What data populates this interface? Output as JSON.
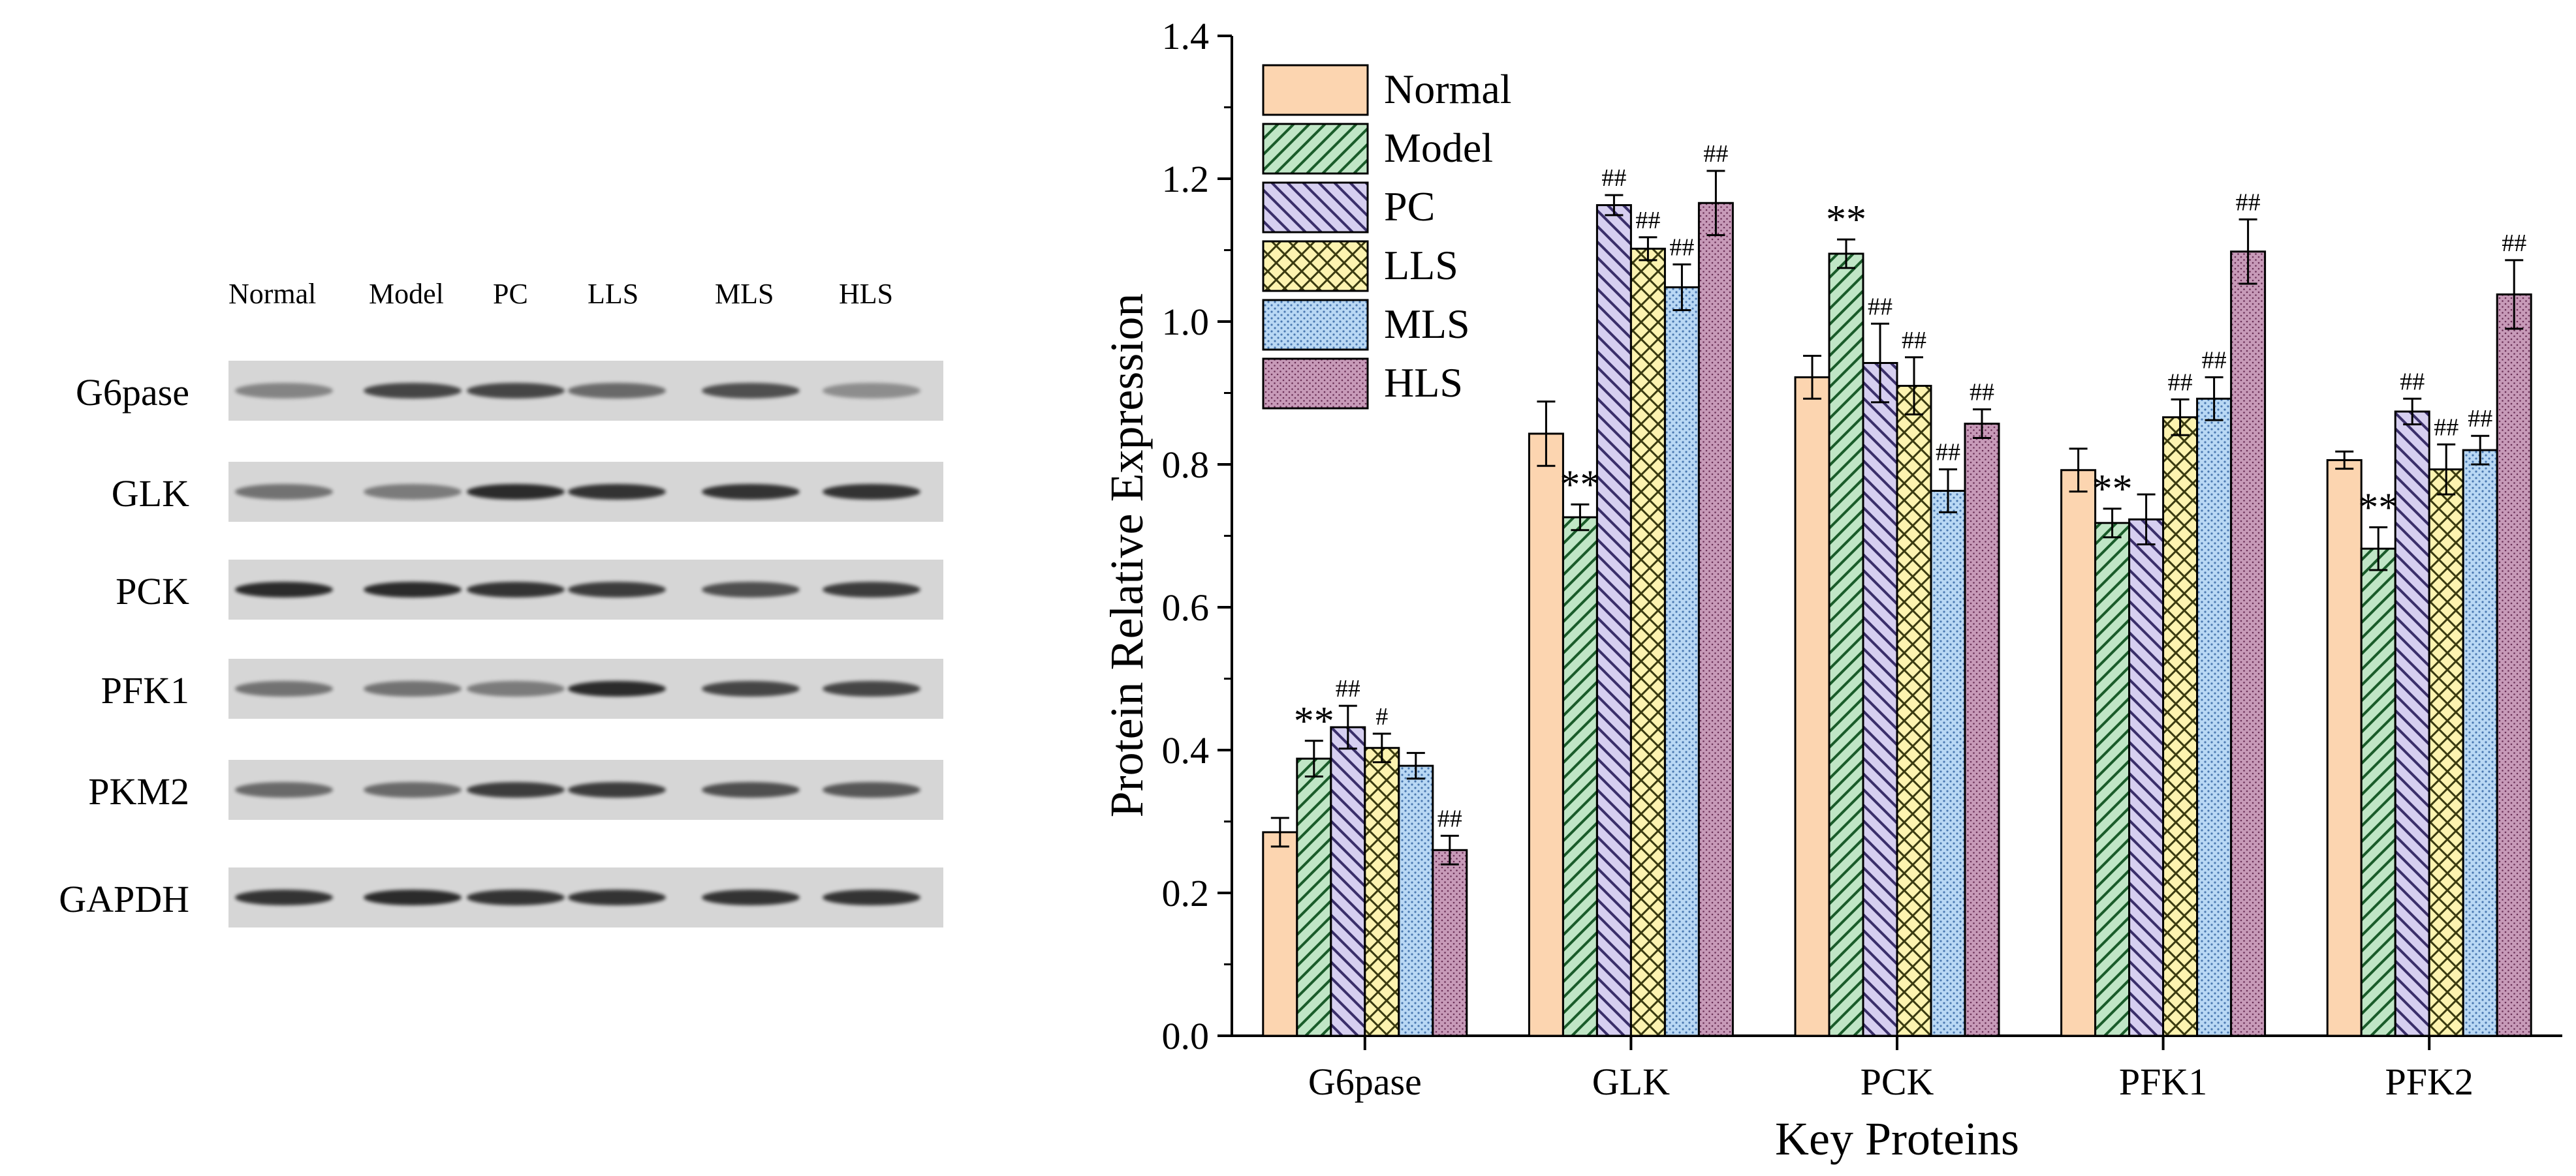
{
  "blot": {
    "lanes": [
      "Normal",
      "Model",
      "PC",
      "LLS",
      "MLS",
      "HLS"
    ],
    "rows": [
      {
        "label": "G6pase",
        "intensity": [
          0.45,
          0.8,
          0.8,
          0.6,
          0.75,
          0.4
        ]
      },
      {
        "label": "GLK",
        "intensity": [
          0.55,
          0.5,
          0.95,
          0.9,
          0.9,
          0.9
        ]
      },
      {
        "label": "PCK",
        "intensity": [
          0.95,
          0.95,
          0.9,
          0.85,
          0.75,
          0.85
        ]
      },
      {
        "label": "PFK1",
        "intensity": [
          0.55,
          0.55,
          0.5,
          0.95,
          0.8,
          0.8
        ]
      },
      {
        "label": "PKM2",
        "intensity": [
          0.6,
          0.6,
          0.85,
          0.85,
          0.75,
          0.7
        ]
      },
      {
        "label": "GAPDH",
        "intensity": [
          0.9,
          0.95,
          0.9,
          0.9,
          0.9,
          0.9
        ]
      }
    ]
  },
  "chart_data": {
    "type": "bar",
    "xlabel": "Key Proteins",
    "ylabel": "Protein Relative Expression",
    "ylim": [
      0.0,
      1.4
    ],
    "yticks": [
      "0.0",
      "0.2",
      "0.4",
      "0.6",
      "0.8",
      "1.0",
      "1.2",
      "1.4"
    ],
    "legend_position": "top-left",
    "categories": [
      "G6pase",
      "GLK",
      "PCK",
      "PFK1",
      "PFK2"
    ],
    "series": [
      {
        "name": "Normal",
        "color": "#fcd5b0",
        "pattern": "none",
        "values": [
          0.285,
          0.843,
          0.922,
          0.792,
          0.806
        ],
        "errors": [
          0.02,
          0.045,
          0.03,
          0.03,
          0.012
        ],
        "marks": [
          "",
          "",
          "",
          "",
          ""
        ]
      },
      {
        "name": "Model",
        "color": "#c0e6c6",
        "pattern": "diag-right",
        "values": [
          0.388,
          0.726,
          1.095,
          0.718,
          0.682
        ],
        "errors": [
          0.025,
          0.018,
          0.02,
          0.02,
          0.03
        ],
        "marks": [
          "**",
          "**",
          "**",
          "**",
          "**"
        ]
      },
      {
        "name": "PC",
        "color": "#d6cff0",
        "pattern": "diag-left",
        "values": [
          0.432,
          1.163,
          0.942,
          0.723,
          0.874
        ],
        "errors": [
          0.03,
          0.014,
          0.055,
          0.035,
          0.018
        ],
        "marks": [
          "##",
          "##",
          "##",
          "",
          "##"
        ]
      },
      {
        "name": "LLS",
        "color": "#fdf3b0",
        "pattern": "cross",
        "values": [
          0.403,
          1.102,
          0.91,
          0.866,
          0.793
        ],
        "errors": [
          0.02,
          0.016,
          0.04,
          0.025,
          0.035
        ],
        "marks": [
          "#",
          "##",
          "##",
          "##",
          "##"
        ]
      },
      {
        "name": "MLS",
        "color": "#b9d8f4",
        "pattern": "dots",
        "values": [
          0.378,
          1.048,
          0.763,
          0.892,
          0.82
        ],
        "errors": [
          0.018,
          0.032,
          0.03,
          0.03,
          0.02
        ],
        "marks": [
          "",
          "##",
          "##",
          "##",
          "##"
        ]
      },
      {
        "name": "HLS",
        "color": "#c79ab8",
        "pattern": "dots-dense",
        "values": [
          0.26,
          1.166,
          0.857,
          1.098,
          1.038
        ],
        "errors": [
          0.02,
          0.045,
          0.02,
          0.045,
          0.048
        ],
        "marks": [
          "##",
          "##",
          "##",
          "##",
          "##"
        ]
      }
    ]
  }
}
